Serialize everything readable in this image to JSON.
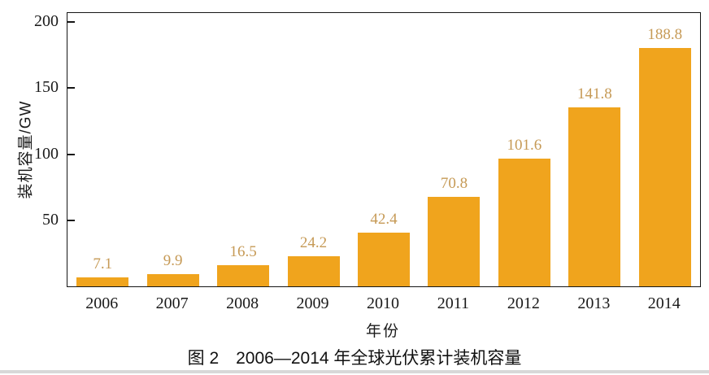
{
  "chart_data": {
    "type": "bar",
    "title": "图 2　2006—2014 年全球光伏累计装机容量",
    "xlabel": "年份",
    "ylabel": "装机容量/GW",
    "categories": [
      "2006",
      "2007",
      "2008",
      "2009",
      "2010",
      "2011",
      "2012",
      "2013",
      "2014"
    ],
    "values": [
      7.1,
      9.9,
      16.5,
      24.2,
      42.4,
      70.8,
      101.6,
      141.8,
      188.8
    ],
    "value_labels": [
      "7.1",
      "9.9",
      "16.5",
      "24.2",
      "42.4",
      "70.8",
      "101.6",
      "141.8",
      "188.8"
    ],
    "ylim": [
      0,
      200
    ],
    "yticks": [
      50,
      100,
      150,
      200
    ],
    "grid": false,
    "legend": "none",
    "colors": {
      "bar": "#F0A41D",
      "value_label": "#C69A56",
      "axis_text": "#1A1A1A",
      "axis_line": "#161616",
      "bottom_divider": "#D8D8D8"
    }
  }
}
